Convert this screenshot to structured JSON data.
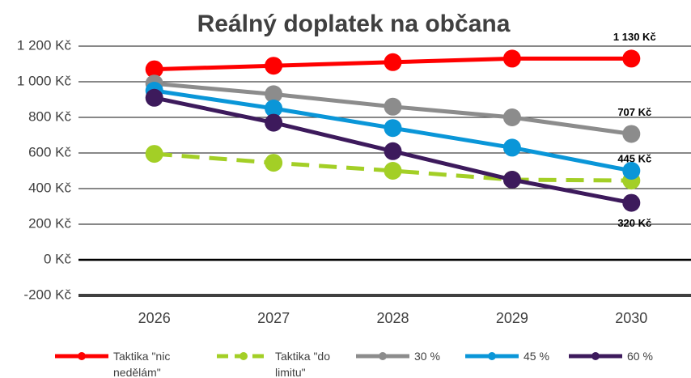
{
  "chart_data": {
    "type": "line",
    "title": "Reálný doplatek na občana",
    "categories": [
      "2026",
      "2027",
      "2028",
      "2029",
      "2030"
    ],
    "series": [
      {
        "name": "Taktika \"nic nedělám\"",
        "color": "#ff0000",
        "dashed": false,
        "values": [
          1070,
          1090,
          1110,
          1130,
          1130
        ],
        "value_labels": [
          null,
          null,
          null,
          null,
          "1 130 Kč"
        ]
      },
      {
        "name": "Taktika \"do limitu\"",
        "color": "#a3cf26",
        "dashed": true,
        "values": [
          595,
          545,
          500,
          450,
          445
        ],
        "value_labels": [
          null,
          null,
          null,
          null,
          "445 Kč"
        ]
      },
      {
        "name": "30 %",
        "color": "#8c8c8c",
        "dashed": false,
        "values": [
          990,
          930,
          860,
          800,
          707
        ],
        "value_labels": [
          null,
          null,
          null,
          null,
          "707 Kč"
        ]
      },
      {
        "name": "45 %",
        "color": "#0a96d8",
        "dashed": false,
        "values": [
          950,
          850,
          740,
          630,
          500
        ],
        "value_labels": [
          null,
          null,
          null,
          null,
          null
        ]
      },
      {
        "name": "60 %",
        "color": "#3d1a5c",
        "dashed": false,
        "values": [
          910,
          770,
          610,
          450,
          320
        ],
        "value_labels": [
          null,
          null,
          null,
          null,
          "320 Kč"
        ]
      }
    ],
    "ylim": [
      -200,
      1200
    ],
    "yticks": [
      {
        "value": -200,
        "label": "-200 Kč"
      },
      {
        "value": 0,
        "label": "0 Kč"
      },
      {
        "value": 200,
        "label": "200 Kč"
      },
      {
        "value": 400,
        "label": "400 Kč"
      },
      {
        "value": 600,
        "label": "600 Kč"
      },
      {
        "value": 800,
        "label": "800 Kč"
      },
      {
        "value": 1000,
        "label": "1 000 Kč"
      },
      {
        "value": 1200,
        "label": "1 200 Kč"
      }
    ],
    "grid": true
  }
}
